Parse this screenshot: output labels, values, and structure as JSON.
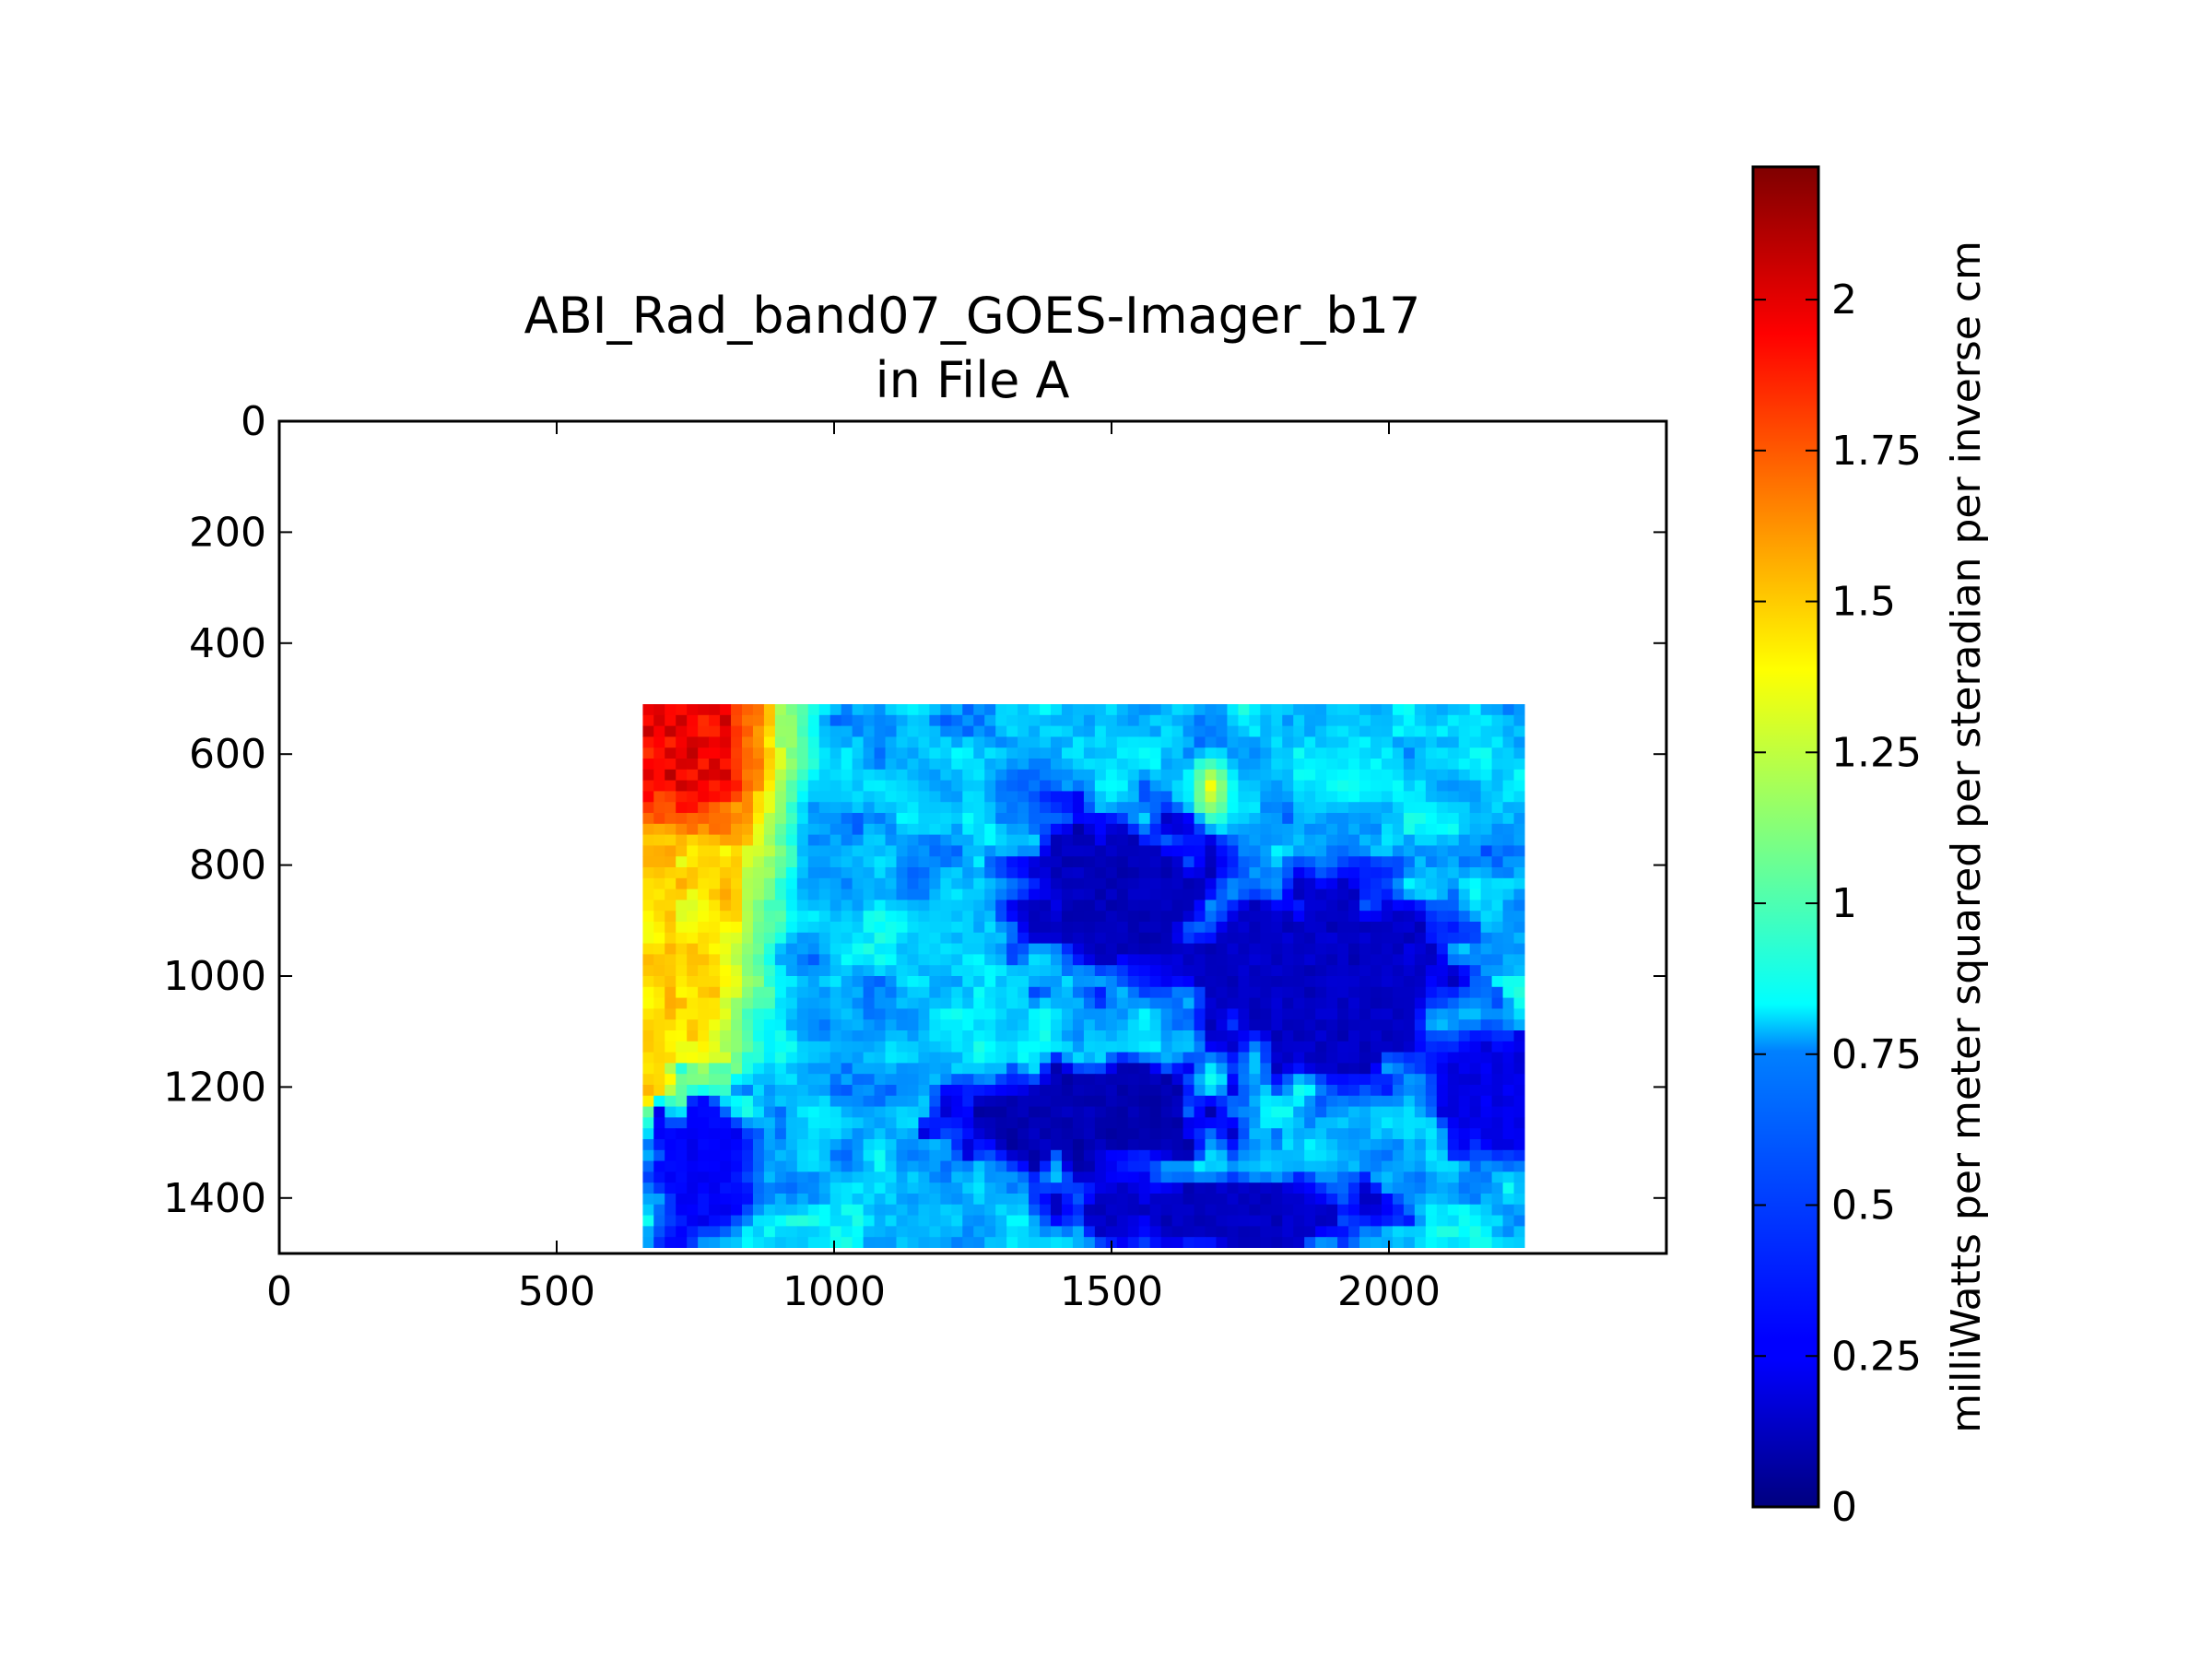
{
  "chart_data": {
    "type": "heatmap",
    "title": [
      "ABI_Rad_band07_GOES-Imager_b17",
      "in File A"
    ],
    "xlabel": "",
    "ylabel": "",
    "xlim": [
      0,
      2500
    ],
    "ylim": [
      1500,
      0
    ],
    "y_inverted": true,
    "x_ticks": [
      0,
      500,
      1000,
      1500,
      2000
    ],
    "x_tick_labels": [
      "0",
      "500",
      "1000",
      "1500",
      "2000"
    ],
    "y_ticks": [
      0,
      200,
      400,
      600,
      800,
      1000,
      1200,
      1400
    ],
    "y_tick_labels": [
      "0",
      "200",
      "400",
      "600",
      "800",
      "1000",
      "1200",
      "1400"
    ],
    "image_extent": {
      "x": [
        655,
        2245
      ],
      "y": [
        510,
        1490
      ]
    },
    "colormap": "jet",
    "colorbar": {
      "label": "milliWatts per meter squared per steradian per inverse cm",
      "range": [
        0,
        2.22
      ],
      "ticks": [
        0,
        0.25,
        0.5,
        0.75,
        1,
        1.25,
        1.5,
        1.75,
        2
      ],
      "tick_labels": [
        "0",
        "0.25",
        "0.5",
        "0.75",
        "1",
        "1.25",
        "1.5",
        "1.75",
        "2"
      ]
    },
    "field_features": {
      "background": 0.68,
      "hot_band": {
        "x": [
          655,
          1000
        ],
        "y": [
          510,
          1300
        ],
        "value": 1.45
      },
      "hot_corner": {
        "x": [
          655,
          900
        ],
        "y": [
          510,
          780
        ],
        "value": 1.95
      },
      "dark_regions": [
        {
          "x": 1510,
          "y": 860,
          "rx": 230,
          "ry": 200,
          "value": 0.08
        },
        {
          "x": 1870,
          "y": 1000,
          "rx": 320,
          "ry": 230,
          "value": 0.1
        },
        {
          "x": 1450,
          "y": 1260,
          "rx": 330,
          "ry": 120,
          "value": 0.06
        },
        {
          "x": 1700,
          "y": 1420,
          "rx": 380,
          "ry": 80,
          "value": 0.1
        },
        {
          "x": 760,
          "y": 1350,
          "rx": 120,
          "ry": 200,
          "value": 0.22
        },
        {
          "x": 2180,
          "y": 1200,
          "rx": 140,
          "ry": 160,
          "value": 0.18
        }
      ],
      "warm_spot": {
        "x": 1680,
        "y": 660,
        "rx": 50,
        "ry": 90,
        "value": 1.4
      }
    },
    "grid": false,
    "legend": "none"
  }
}
